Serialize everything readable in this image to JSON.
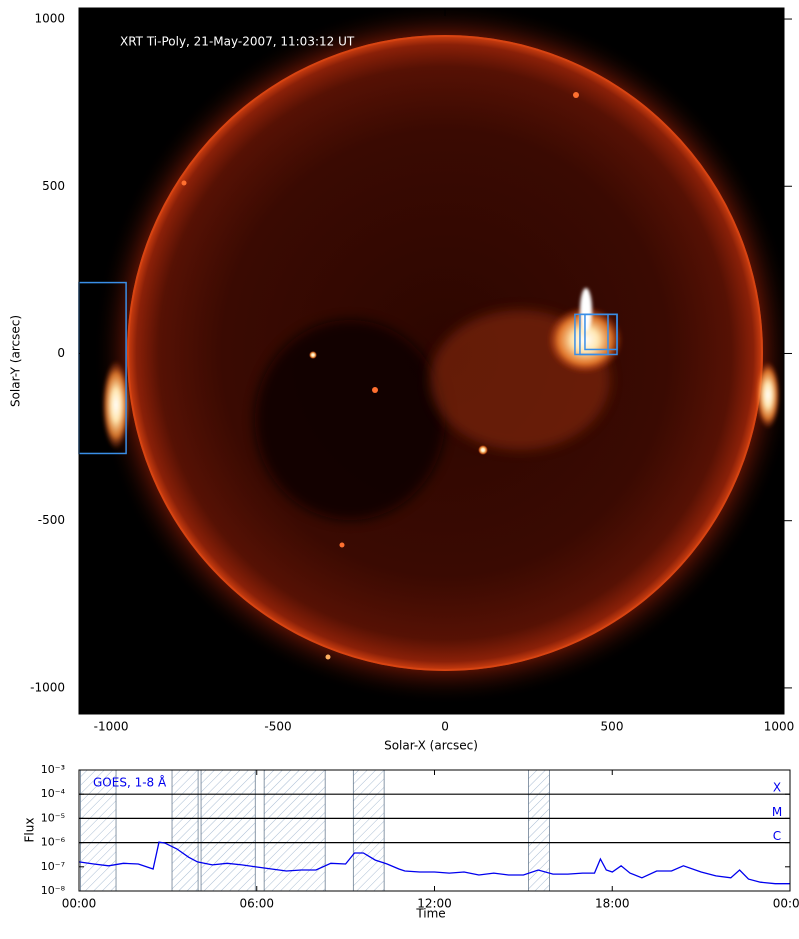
{
  "chart_data": [
    {
      "type": "image",
      "annotation": "XRT Ti-Poly, 21-May-2007, 11:03:12 UT",
      "xlabel": "Solar-X (arcsec)",
      "ylabel": "Solar-Y (arcsec)",
      "xlim": [
        -1096,
        1015
      ],
      "ylim": [
        -1078,
        1033
      ],
      "xticks": [
        -1000,
        -500,
        0,
        500,
        1000
      ],
      "yticks": [
        -1000,
        -500,
        0,
        500,
        1000
      ],
      "box_color": "#3a8ee6",
      "boxes": [
        {
          "x": [
            -1096,
            -955
          ],
          "y": [
            -299,
            212
          ]
        },
        {
          "x": [
            389,
            515
          ],
          "y": [
            -3,
            117
          ]
        },
        {
          "x": [
            404,
            488
          ],
          "y": [
            -3,
            117
          ]
        },
        {
          "x": [
            419,
            515
          ],
          "y": [
            12,
            117
          ]
        }
      ]
    },
    {
      "type": "line",
      "xlabel": "Time",
      "ylabel": "Flux",
      "xlim": [
        0,
        24
      ],
      "ylim": [
        1e-08,
        0.001
      ],
      "log_y": true,
      "xticks": [
        {
          "value": 0,
          "label": "00:00"
        },
        {
          "value": 6,
          "label": "06:00"
        },
        {
          "value": 12,
          "label": "12:00"
        },
        {
          "value": 18,
          "label": "18:00"
        },
        {
          "value": 24,
          "label": "00:00"
        }
      ],
      "yticks": [
        {
          "value": 1e-08,
          "label": "10⁻⁸"
        },
        {
          "value": 1e-07,
          "label": "10⁻⁷"
        },
        {
          "value": 1e-06,
          "label": "10⁻⁶"
        },
        {
          "value": 1e-05,
          "label": "10⁻⁵"
        },
        {
          "value": 0.0001,
          "label": "10⁻⁴"
        },
        {
          "value": 0.001,
          "label": "10⁻³"
        }
      ],
      "class_lines": [
        {
          "label": "X",
          "value": 0.0001
        },
        {
          "label": "M",
          "value": 1e-05
        },
        {
          "label": "C",
          "value": 1e-06
        }
      ],
      "shaded": [
        [
          0.05,
          1.25
        ],
        [
          3.14,
          4.02
        ],
        [
          4.12,
          5.95
        ],
        [
          6.25,
          8.31
        ],
        [
          9.26,
          10.3
        ],
        [
          15.17,
          15.88
        ]
      ],
      "series": [
        {
          "name": "GOES, 1-8 Å",
          "color": "#0000ee",
          "x": [
            0,
            0.5,
            1.0,
            1.5,
            2.0,
            2.5,
            2.7,
            2.9,
            3.3,
            3.7,
            4.0,
            4.5,
            5.0,
            5.5,
            6.0,
            6.5,
            7.0,
            7.5,
            8.0,
            8.5,
            9.0,
            9.3,
            9.6,
            10.0,
            10.4,
            10.8,
            11.0,
            11.5,
            12.0,
            12.5,
            13.0,
            13.5,
            14.0,
            14.5,
            15.0,
            15.5,
            16.0,
            16.5,
            17.0,
            17.4,
            17.6,
            17.8,
            18.0,
            18.3,
            18.6,
            19.0,
            19.5,
            20.0,
            20.4,
            21.0,
            21.5,
            22.0,
            22.3,
            22.6,
            23.0,
            23.5,
            24.0
          ],
          "values": [
            1.6e-07,
            1.3e-07,
            1.1e-07,
            1.4e-07,
            1.3e-07,
            8.1e-08,
            1.05e-06,
            9.5e-07,
            5.5e-07,
            2.5e-07,
            1.6e-07,
            1.2e-07,
            1.4e-07,
            1.2e-07,
            9.8e-08,
            8.1e-08,
            6.7e-08,
            7.4e-08,
            7.4e-08,
            1.4e-07,
            1.3e-07,
            3.7e-07,
            3.7e-07,
            1.9e-07,
            1.3e-07,
            8.1e-08,
            6.7e-08,
            6.1e-08,
            6.1e-08,
            5.5e-08,
            6.1e-08,
            4.6e-08,
            5.5e-08,
            4.6e-08,
            4.6e-08,
            7.4e-08,
            5e-08,
            5e-08,
            5.5e-08,
            5.5e-08,
            2.1e-07,
            7.4e-08,
            6.1e-08,
            1.1e-07,
            5.5e-08,
            3.5e-08,
            6.7e-08,
            6.7e-08,
            1.1e-07,
            6.1e-08,
            4.2e-08,
            3.5e-08,
            7.4e-08,
            3.1e-08,
            2.3e-08,
            2e-08,
            2e-08
          ]
        }
      ]
    }
  ]
}
